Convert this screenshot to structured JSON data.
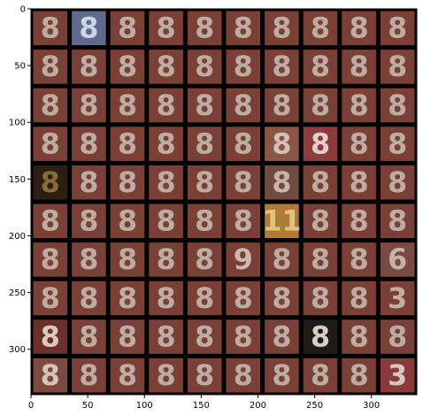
{
  "chart_data": {
    "type": "image-grid",
    "title": "",
    "xlabel": "",
    "ylabel": "",
    "xlim": [
      0,
      340
    ],
    "ylim": [
      340,
      0
    ],
    "x_ticks": [
      0,
      50,
      100,
      150,
      200,
      250,
      300
    ],
    "y_ticks": [
      0,
      50,
      100,
      150,
      200,
      250,
      300
    ],
    "grid_rows": 10,
    "grid_cols": 10,
    "tile_size": 34,
    "default_glyph": "8",
    "default_tile_color": "#7a3f35",
    "default_glyph_color": "#c9c0b6",
    "special_tiles": [
      {
        "row": 0,
        "col": 1,
        "bg": "#5d6c8e",
        "fg": "#e6e8f2",
        "glyph": "8"
      },
      {
        "row": 3,
        "col": 6,
        "bg": "#8a5547",
        "fg": "#e0d3c8",
        "glyph": "8"
      },
      {
        "row": 3,
        "col": 7,
        "bg": "#8e3b3c",
        "fg": "#f2e8e8",
        "glyph": "8"
      },
      {
        "row": 4,
        "col": 0,
        "bg": "#2a1f12",
        "fg": "#9a7a3a",
        "glyph": "8"
      },
      {
        "row": 4,
        "col": 6,
        "bg": "#6f4c3f",
        "fg": "#d4c7ba",
        "glyph": "8"
      },
      {
        "row": 5,
        "col": 6,
        "bg": "#b07b34",
        "fg": "#e9cf8e",
        "glyph": "11"
      },
      {
        "row": 6,
        "col": 5,
        "bg": "#7a3f35",
        "fg": "#d8cfc4",
        "glyph": "9"
      },
      {
        "row": 6,
        "col": 9,
        "bg": "#7a4a40",
        "fg": "#d0c6bc",
        "glyph": "6"
      },
      {
        "row": 7,
        "col": 9,
        "bg": "#7a3f35",
        "fg": "#cfc3b7",
        "glyph": "3"
      },
      {
        "row": 8,
        "col": 0,
        "bg": "#6b3029",
        "fg": "#f0e6da",
        "glyph": "8"
      },
      {
        "row": 8,
        "col": 7,
        "bg": "#1f1a16",
        "fg": "#f4eee4",
        "glyph": "8"
      },
      {
        "row": 9,
        "col": 0,
        "bg": "#7d4a3f",
        "fg": "#e4dad0",
        "glyph": "8"
      },
      {
        "row": 9,
        "col": 9,
        "bg": "#8a3a38",
        "fg": "#e8dede",
        "glyph": "3"
      }
    ]
  }
}
